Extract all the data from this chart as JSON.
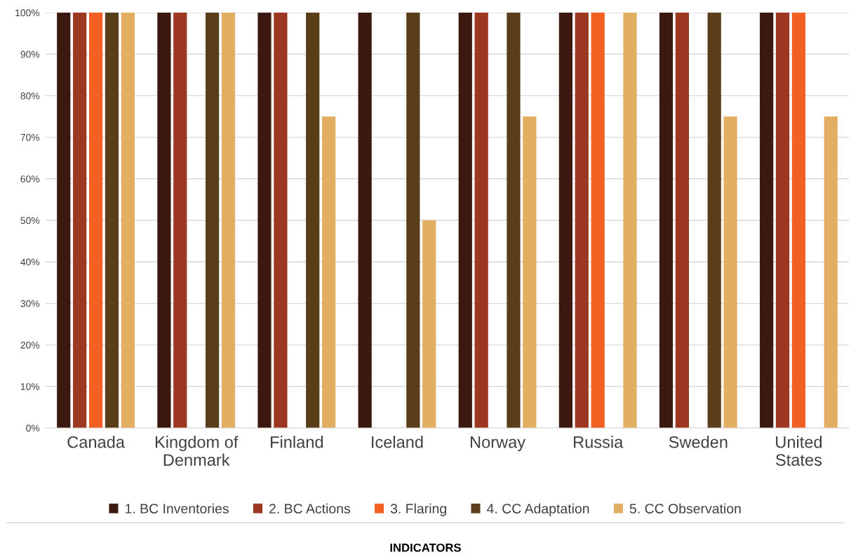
{
  "chart_data": {
    "type": "bar",
    "categories": [
      "Canada",
      "Kingdom of\nDenmark",
      "Finland",
      "Iceland",
      "Norway",
      "Russia",
      "Sweden",
      "United\nStates"
    ],
    "series": [
      {
        "name": "1. BC Inventories",
        "color": "#3b1810",
        "values": [
          100,
          100,
          100,
          100,
          100,
          100,
          100,
          100
        ]
      },
      {
        "name": "2. BC Actions",
        "color": "#9c3722",
        "values": [
          100,
          100,
          100,
          0,
          100,
          100,
          100,
          100
        ]
      },
      {
        "name": "3. Flaring",
        "color": "#f26122",
        "values": [
          100,
          0,
          0,
          0,
          0,
          100,
          0,
          100
        ]
      },
      {
        "name": "4. CC Adaptation",
        "color": "#5a3e19",
        "values": [
          100,
          100,
          100,
          100,
          100,
          0,
          100,
          0
        ]
      },
      {
        "name": "5. CC Observation",
        "color": "#e2ae62",
        "values": [
          100,
          100,
          75,
          50,
          75,
          100,
          75,
          75
        ]
      }
    ],
    "ylim": [
      0,
      100
    ],
    "yticks": [
      {
        "value": 0,
        "label": "0%"
      },
      {
        "value": 10,
        "label": "10%"
      },
      {
        "value": 20,
        "label": "20%"
      },
      {
        "value": 30,
        "label": "30%"
      },
      {
        "value": 40,
        "label": "40%"
      },
      {
        "value": 50,
        "label": "50%"
      },
      {
        "value": 60,
        "label": "60%"
      },
      {
        "value": 70,
        "label": "70%"
      },
      {
        "value": 80,
        "label": "80%"
      },
      {
        "value": 90,
        "label": "90%"
      },
      {
        "value": 100,
        "label": "100%"
      }
    ],
    "grid": "y",
    "legend": "bottom",
    "annotations": [
      "INDICATORS"
    ]
  }
}
